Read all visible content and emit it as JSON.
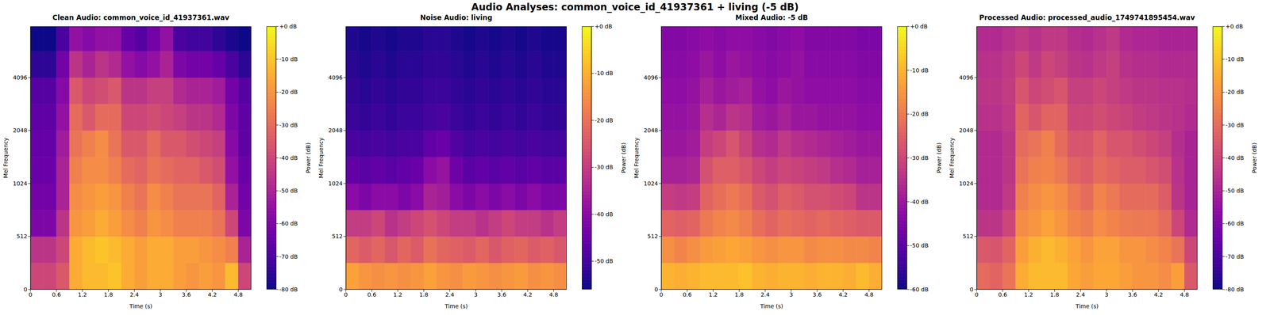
{
  "title": "Audio Analyses: common_voice_id_41937361 + living (-5 dB)",
  "chart_data": [
    {
      "type": "heatmap",
      "title": "Clean Audio: common_voice_id_41937361.wav",
      "x_label": "Time (s)",
      "y_label": "Mel Frequency",
      "xlim": [
        0,
        5.1
      ],
      "xticks": [
        0,
        0.6,
        1.2,
        1.8,
        2.4,
        3,
        3.6,
        4.2,
        4.8
      ],
      "ylim": [
        0,
        8000
      ],
      "yticks": [
        0,
        512,
        1024,
        2048,
        4096
      ],
      "x_edges": [
        0,
        0.3,
        0.6,
        0.9,
        1.2,
        1.5,
        1.8,
        2.1,
        2.4,
        2.7,
        3.0,
        3.3,
        3.6,
        3.9,
        4.2,
        4.5,
        4.8,
        5.1
      ],
      "y_edges": [
        0,
        256,
        512,
        724,
        1024,
        1448,
        2048,
        2896,
        4096,
        5793,
        8000
      ],
      "cells": [
        [
          -40,
          -40,
          -35,
          -15,
          -12,
          -12,
          -10,
          -15,
          -18,
          -15,
          -15,
          -18,
          -20,
          -18,
          -20,
          -12,
          -40
        ],
        [
          -45,
          -45,
          -40,
          -15,
          -12,
          -10,
          -12,
          -15,
          -18,
          -15,
          -15,
          -18,
          -18,
          -20,
          -22,
          -25,
          -50
        ],
        [
          -60,
          -60,
          -45,
          -20,
          -18,
          -15,
          -18,
          -22,
          -25,
          -20,
          -22,
          -25,
          -25,
          -25,
          -28,
          -40,
          -60
        ],
        [
          -62,
          -62,
          -50,
          -22,
          -20,
          -18,
          -20,
          -25,
          -28,
          -22,
          -25,
          -28,
          -28,
          -28,
          -32,
          -50,
          -62
        ],
        [
          -64,
          -64,
          -50,
          -25,
          -22,
          -22,
          -25,
          -30,
          -32,
          -28,
          -30,
          -32,
          -32,
          -35,
          -38,
          -55,
          -64
        ],
        [
          -65,
          -65,
          -52,
          -28,
          -25,
          -22,
          -28,
          -35,
          -35,
          -30,
          -35,
          -35,
          -38,
          -40,
          -42,
          -58,
          -66
        ],
        [
          -66,
          -66,
          -55,
          -30,
          -35,
          -30,
          -30,
          -40,
          -40,
          -38,
          -40,
          -42,
          -45,
          -45,
          -48,
          -60,
          -66
        ],
        [
          -68,
          -68,
          -58,
          -35,
          -40,
          -38,
          -35,
          -45,
          -45,
          -42,
          -42,
          -48,
          -50,
          -50,
          -52,
          -62,
          -68
        ],
        [
          -75,
          -75,
          -62,
          -45,
          -50,
          -45,
          -48,
          -55,
          -58,
          -55,
          -50,
          -60,
          -62,
          -62,
          -65,
          -70,
          -75
        ],
        [
          -80,
          -80,
          -70,
          -55,
          -58,
          -55,
          -55,
          -65,
          -68,
          -62,
          -55,
          -70,
          -72,
          -72,
          -75,
          -78,
          -80
        ]
      ],
      "colorbar": {
        "label": "Power (dB)",
        "range": [
          -80,
          0
        ],
        "ticks": [
          {
            "value": 0,
            "label": "+0 dB"
          },
          {
            "value": -10,
            "label": "-10 dB"
          },
          {
            "value": -20,
            "label": "-20 dB"
          },
          {
            "value": -30,
            "label": "-30 dB"
          },
          {
            "value": -40,
            "label": "-40 dB"
          },
          {
            "value": -50,
            "label": "-50 dB"
          },
          {
            "value": -60,
            "label": "-60 dB"
          },
          {
            "value": -70,
            "label": "-70 dB"
          },
          {
            "value": -80,
            "label": "-80 dB"
          }
        ]
      }
    },
    {
      "type": "heatmap",
      "title": "Noise Audio: living",
      "x_label": "Time (s)",
      "y_label": "Mel Frequency",
      "xlim": [
        0,
        5.1
      ],
      "xticks": [
        0,
        0.6,
        1.2,
        1.8,
        2.4,
        3,
        3.6,
        4.2,
        4.8
      ],
      "ylim": [
        0,
        8000
      ],
      "yticks": [
        0,
        512,
        1024,
        2048,
        4096
      ],
      "x_edges": [
        0,
        0.3,
        0.6,
        0.9,
        1.2,
        1.5,
        1.8,
        2.1,
        2.4,
        2.7,
        3.0,
        3.3,
        3.6,
        3.9,
        4.2,
        4.5,
        4.8,
        5.1
      ],
      "y_edges": [
        0,
        256,
        512,
        724,
        1024,
        1448,
        2048,
        2896,
        4096,
        5793,
        8000
      ],
      "cells": [
        [
          -12,
          -14,
          -15,
          -14,
          -15,
          -14,
          -12,
          -14,
          -15,
          -13,
          -14,
          -15,
          -14,
          -13,
          -15,
          -14,
          -15
        ],
        [
          -22,
          -24,
          -22,
          -25,
          -22,
          -24,
          -20,
          -22,
          -23,
          -24,
          -22,
          -25,
          -23,
          -22,
          -24,
          -23,
          -25
        ],
        [
          -30,
          -30,
          -28,
          -32,
          -30,
          -28,
          -26,
          -28,
          -30,
          -30,
          -32,
          -30,
          -28,
          -30,
          -30,
          -32,
          -30
        ],
        [
          -40,
          -42,
          -40,
          -40,
          -42,
          -40,
          -35,
          -36,
          -40,
          -42,
          -40,
          -42,
          -40,
          -42,
          -40,
          -42,
          -42
        ],
        [
          -46,
          -47,
          -46,
          -47,
          -46,
          -45,
          -40,
          -38,
          -44,
          -47,
          -46,
          -47,
          -46,
          -47,
          -46,
          -47,
          -47
        ],
        [
          -49,
          -50,
          -49,
          -50,
          -49,
          -49,
          -46,
          -45,
          -48,
          -50,
          -49,
          -50,
          -49,
          -50,
          -49,
          -50,
          -50
        ],
        [
          -51,
          -52,
          -51,
          -52,
          -51,
          -51,
          -50,
          -49,
          -51,
          -52,
          -51,
          -52,
          -51,
          -52,
          -51,
          -52,
          -52
        ],
        [
          -52,
          -53,
          -52,
          -53,
          -52,
          -52,
          -51,
          -51,
          -52,
          -53,
          -52,
          -53,
          -52,
          -53,
          -52,
          -53,
          -53
        ],
        [
          -53,
          -54,
          -53,
          -54,
          -53,
          -53,
          -52,
          -52,
          -53,
          -54,
          -53,
          -54,
          -53,
          -54,
          -53,
          -54,
          -54
        ],
        [
          -54,
          -55,
          -54,
          -55,
          -54,
          -54,
          -53,
          -53,
          -54,
          -55,
          -54,
          -55,
          -54,
          -55,
          -54,
          -55,
          -55
        ]
      ],
      "colorbar": {
        "label": "Power (dB)",
        "range": [
          -56,
          0
        ],
        "ticks": [
          {
            "value": 0,
            "label": "+0 dB"
          },
          {
            "value": -10,
            "label": "-10 dB"
          },
          {
            "value": -20,
            "label": "-20 dB"
          },
          {
            "value": -30,
            "label": "-30 dB"
          },
          {
            "value": -40,
            "label": "-40 dB"
          },
          {
            "value": -50,
            "label": "-50 dB"
          }
        ]
      }
    },
    {
      "type": "heatmap",
      "title": "Mixed Audio: -5 dB",
      "x_label": "Time (s)",
      "y_label": "Mel Frequency",
      "xlim": [
        0,
        5.1
      ],
      "xticks": [
        0,
        0.6,
        1.2,
        1.8,
        2.4,
        3,
        3.6,
        4.2,
        4.8
      ],
      "ylim": [
        0,
        8000
      ],
      "yticks": [
        0,
        512,
        1024,
        2048,
        4096
      ],
      "x_edges": [
        0,
        0.3,
        0.6,
        0.9,
        1.2,
        1.5,
        1.8,
        2.1,
        2.4,
        2.7,
        3.0,
        3.3,
        3.6,
        3.9,
        4.2,
        4.5,
        4.8,
        5.1
      ],
      "y_edges": [
        0,
        256,
        512,
        724,
        1024,
        1448,
        2048,
        2896,
        4096,
        5793,
        8000
      ],
      "cells": [
        [
          -10,
          -11,
          -10,
          -9,
          -9,
          -9,
          -8,
          -10,
          -11,
          -10,
          -10,
          -11,
          -10,
          -10,
          -11,
          -9,
          -11
        ],
        [
          -16,
          -18,
          -16,
          -14,
          -13,
          -12,
          -13,
          -15,
          -16,
          -15,
          -15,
          -17,
          -16,
          -16,
          -17,
          -17,
          -18
        ],
        [
          -24,
          -25,
          -24,
          -20,
          -18,
          -17,
          -19,
          -22,
          -24,
          -22,
          -23,
          -24,
          -23,
          -24,
          -25,
          -26,
          -26
        ],
        [
          -32,
          -33,
          -32,
          -24,
          -22,
          -20,
          -22,
          -26,
          -28,
          -25,
          -26,
          -28,
          -28,
          -29,
          -30,
          -34,
          -34
        ],
        [
          -38,
          -38,
          -37,
          -28,
          -25,
          -25,
          -27,
          -30,
          -32,
          -30,
          -31,
          -32,
          -33,
          -35,
          -36,
          -38,
          -38
        ],
        [
          -40,
          -40,
          -39,
          -32,
          -30,
          -27,
          -31,
          -35,
          -36,
          -33,
          -35,
          -36,
          -37,
          -38,
          -39,
          -40,
          -40
        ],
        [
          -41,
          -41,
          -40,
          -35,
          -37,
          -34,
          -35,
          -39,
          -40,
          -38,
          -40,
          -40,
          -41,
          -41,
          -41,
          -42,
          -42
        ],
        [
          -42,
          -42,
          -41,
          -38,
          -40,
          -39,
          -38,
          -41,
          -42,
          -40,
          -41,
          -42,
          -42,
          -42,
          -42,
          -43,
          -43
        ],
        [
          -43,
          -43,
          -42,
          -40,
          -42,
          -40,
          -41,
          -42,
          -43,
          -42,
          -41,
          -43,
          -43,
          -43,
          -43,
          -44,
          -44
        ],
        [
          -44,
          -44,
          -43,
          -42,
          -43,
          -42,
          -42,
          -43,
          -44,
          -43,
          -42,
          -44,
          -44,
          -44,
          -44,
          -45,
          -45
        ]
      ],
      "colorbar": {
        "label": "Power (dB)",
        "range": [
          -60,
          0
        ],
        "ticks": [
          {
            "value": 0,
            "label": "+0 dB"
          },
          {
            "value": -10,
            "label": "-10 dB"
          },
          {
            "value": -20,
            "label": "-20 dB"
          },
          {
            "value": -30,
            "label": "-30 dB"
          },
          {
            "value": -40,
            "label": "-40 dB"
          },
          {
            "value": -50,
            "label": "-50 dB"
          },
          {
            "value": -60,
            "label": "-60 dB"
          }
        ]
      }
    },
    {
      "type": "heatmap",
      "title": "Processed Audio: processed_audio_1749741895454.wav",
      "x_label": "Time (s)",
      "y_label": "Mel Frequency",
      "xlim": [
        0,
        5.1
      ],
      "xticks": [
        0,
        0.6,
        1.2,
        1.8,
        2.4,
        3,
        3.6,
        4.2,
        4.8
      ],
      "ylim": [
        0,
        8000
      ],
      "yticks": [
        0,
        512,
        1024,
        2048,
        4096
      ],
      "x_edges": [
        0,
        0.3,
        0.6,
        0.9,
        1.2,
        1.5,
        1.8,
        2.1,
        2.4,
        2.7,
        3.0,
        3.3,
        3.6,
        3.9,
        4.2,
        4.5,
        4.8,
        5.1
      ],
      "y_edges": [
        0,
        256,
        512,
        724,
        1024,
        1448,
        2048,
        2896,
        4096,
        5793,
        8000
      ],
      "cells": [
        [
          -30,
          -32,
          -28,
          -15,
          -12,
          -12,
          -12,
          -16,
          -18,
          -16,
          -16,
          -18,
          -20,
          -20,
          -22,
          -18,
          -35
        ],
        [
          -35,
          -36,
          -32,
          -18,
          -14,
          -12,
          -14,
          -17,
          -20,
          -17,
          -17,
          -20,
          -20,
          -22,
          -24,
          -28,
          -40
        ],
        [
          -45,
          -45,
          -40,
          -22,
          -20,
          -17,
          -20,
          -24,
          -26,
          -22,
          -24,
          -26,
          -27,
          -27,
          -30,
          -40,
          -48
        ],
        [
          -48,
          -48,
          -44,
          -25,
          -22,
          -20,
          -22,
          -27,
          -30,
          -24,
          -27,
          -30,
          -30,
          -30,
          -34,
          -45,
          -50
        ],
        [
          -48,
          -48,
          -45,
          -28,
          -25,
          -24,
          -27,
          -32,
          -34,
          -30,
          -32,
          -34,
          -34,
          -36,
          -38,
          -46,
          -50
        ],
        [
          -48,
          -48,
          -45,
          -30,
          -28,
          -25,
          -30,
          -36,
          -36,
          -32,
          -36,
          -36,
          -38,
          -40,
          -42,
          -47,
          -50
        ],
        [
          -46,
          -46,
          -44,
          -32,
          -36,
          -32,
          -32,
          -40,
          -40,
          -38,
          -40,
          -41,
          -43,
          -44,
          -45,
          -46,
          -48
        ],
        [
          -45,
          -45,
          -43,
          -36,
          -40,
          -38,
          -36,
          -42,
          -42,
          -40,
          -42,
          -44,
          -45,
          -45,
          -46,
          -46,
          -47
        ],
        [
          -46,
          -46,
          -44,
          -40,
          -44,
          -40,
          -42,
          -45,
          -46,
          -44,
          -42,
          -46,
          -47,
          -47,
          -48,
          -48,
          -48
        ],
        [
          -48,
          -48,
          -46,
          -44,
          -46,
          -44,
          -44,
          -47,
          -48,
          -46,
          -44,
          -48,
          -49,
          -49,
          -50,
          -50,
          -50
        ]
      ],
      "colorbar": {
        "label": "Power (dB)",
        "range": [
          -80,
          0
        ],
        "ticks": [
          {
            "value": 0,
            "label": "+0 dB"
          },
          {
            "value": -10,
            "label": "-10 dB"
          },
          {
            "value": -20,
            "label": "-20 dB"
          },
          {
            "value": -30,
            "label": "-30 dB"
          },
          {
            "value": -40,
            "label": "-40 dB"
          },
          {
            "value": -50,
            "label": "-50 dB"
          },
          {
            "value": -60,
            "label": "-60 dB"
          },
          {
            "value": -70,
            "label": "-70 dB"
          },
          {
            "value": -80,
            "label": "-80 dB"
          }
        ]
      }
    }
  ]
}
